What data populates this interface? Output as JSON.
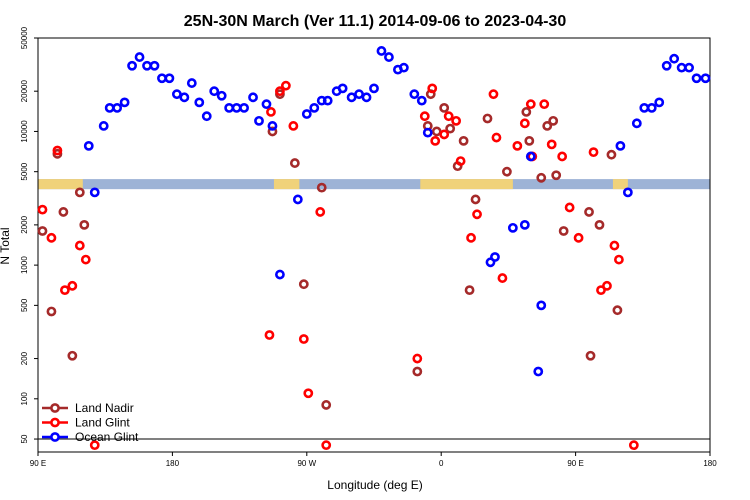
{
  "chart_data": {
    "type": "scatter",
    "title": "25N-30N March (Ver 11.1)   2014-09-06 to 2023-04-30",
    "xlabel": "Longitude (deg E)",
    "ylabel": "N Total",
    "x_ticks": [
      {
        "value": 0,
        "label": "90 E"
      },
      {
        "value": 90,
        "label": "180"
      },
      {
        "value": 180,
        "label": "90 W"
      },
      {
        "value": 270,
        "label": "0"
      },
      {
        "value": 360,
        "label": "90 E"
      },
      {
        "value": 450,
        "label": "180"
      }
    ],
    "y_ticks": [
      50,
      100,
      200,
      500,
      1000,
      2000,
      5000,
      10000,
      20000,
      50000
    ],
    "xlim": [
      0,
      450
    ],
    "ylim": [
      40,
      50000
    ],
    "y_scale": "log",
    "grid": false,
    "legend_position": "bottom-left",
    "reference_line": 50,
    "map_strip": {
      "y_range": [
        3700,
        4400
      ],
      "ocean_color": "#9db3d6",
      "land_color": "#f0d27a",
      "land_spans": [
        [
          0,
          30
        ],
        [
          158,
          175
        ],
        [
          256,
          318
        ],
        [
          385,
          395
        ]
      ]
    },
    "series": [
      {
        "name": "Land Nadir",
        "color": "#a52a2a",
        "points": [
          [
            3,
            1800
          ],
          [
            9,
            450
          ],
          [
            13,
            6800
          ],
          [
            17,
            2500
          ],
          [
            23,
            210
          ],
          [
            28,
            3500
          ],
          [
            31,
            2000
          ],
          [
            157,
            10000
          ],
          [
            162,
            19000
          ],
          [
            172,
            5800
          ],
          [
            178,
            720
          ],
          [
            190,
            3800
          ],
          [
            193,
            90
          ],
          [
            254,
            160
          ],
          [
            261,
            11000
          ],
          [
            263,
            19000
          ],
          [
            267,
            10000
          ],
          [
            272,
            15000
          ],
          [
            276,
            10500
          ],
          [
            281,
            5500
          ],
          [
            285,
            8500
          ],
          [
            289,
            650
          ],
          [
            293,
            3100
          ],
          [
            301,
            12500
          ],
          [
            314,
            5000
          ],
          [
            327,
            14000
          ],
          [
            329,
            8500
          ],
          [
            337,
            4500
          ],
          [
            341,
            11000
          ],
          [
            345,
            12000
          ],
          [
            347,
            4700
          ],
          [
            352,
            1800
          ],
          [
            369,
            2500
          ],
          [
            370,
            210
          ],
          [
            376,
            2000
          ],
          [
            384,
            6700
          ],
          [
            388,
            460
          ]
        ]
      },
      {
        "name": "Land Glint",
        "color": "#ff0000",
        "points": [
          [
            3,
            2600
          ],
          [
            9,
            1600
          ],
          [
            13,
            7200
          ],
          [
            18,
            650
          ],
          [
            23,
            700
          ],
          [
            28,
            1400
          ],
          [
            32,
            1100
          ],
          [
            38,
            45
          ],
          [
            155,
            300
          ],
          [
            156,
            14000
          ],
          [
            162,
            20000
          ],
          [
            166,
            22000
          ],
          [
            171,
            11000
          ],
          [
            178,
            280
          ],
          [
            181,
            110
          ],
          [
            189,
            2500
          ],
          [
            193,
            45
          ],
          [
            254,
            200
          ],
          [
            259,
            13000
          ],
          [
            264,
            21000
          ],
          [
            266,
            8500
          ],
          [
            272,
            9500
          ],
          [
            275,
            13000
          ],
          [
            280,
            12000
          ],
          [
            283,
            6000
          ],
          [
            290,
            1600
          ],
          [
            294,
            2400
          ],
          [
            305,
            19000
          ],
          [
            307,
            9000
          ],
          [
            311,
            800
          ],
          [
            321,
            7800
          ],
          [
            326,
            11500
          ],
          [
            330,
            16000
          ],
          [
            331,
            6500
          ],
          [
            339,
            16000
          ],
          [
            344,
            8000
          ],
          [
            351,
            6500
          ],
          [
            356,
            2700
          ],
          [
            362,
            1600
          ],
          [
            372,
            7000
          ],
          [
            377,
            650
          ],
          [
            381,
            700
          ],
          [
            386,
            1400
          ],
          [
            389,
            1100
          ],
          [
            399,
            45
          ]
        ]
      },
      {
        "name": "Ocean Glint",
        "color": "#0000ff",
        "points": [
          [
            34,
            7800
          ],
          [
            38,
            3500
          ],
          [
            44,
            11000
          ],
          [
            48,
            15000
          ],
          [
            53,
            15000
          ],
          [
            58,
            16500
          ],
          [
            63,
            31000
          ],
          [
            68,
            36000
          ],
          [
            73,
            31000
          ],
          [
            78,
            31000
          ],
          [
            83,
            25000
          ],
          [
            88,
            25000
          ],
          [
            93,
            19000
          ],
          [
            98,
            18000
          ],
          [
            103,
            23000
          ],
          [
            108,
            16500
          ],
          [
            113,
            13000
          ],
          [
            118,
            20000
          ],
          [
            123,
            18500
          ],
          [
            128,
            15000
          ],
          [
            133,
            15000
          ],
          [
            138,
            15000
          ],
          [
            144,
            18000
          ],
          [
            148,
            12000
          ],
          [
            153,
            16000
          ],
          [
            157,
            11000
          ],
          [
            162,
            850
          ],
          [
            174,
            3100
          ],
          [
            180,
            13500
          ],
          [
            185,
            15000
          ],
          [
            190,
            17000
          ],
          [
            194,
            17000
          ],
          [
            200,
            20000
          ],
          [
            204,
            21000
          ],
          [
            210,
            18000
          ],
          [
            215,
            19000
          ],
          [
            220,
            18000
          ],
          [
            225,
            21000
          ],
          [
            230,
            40000
          ],
          [
            235,
            36000
          ],
          [
            241,
            29000
          ],
          [
            245,
            30000
          ],
          [
            252,
            19000
          ],
          [
            257,
            17000
          ],
          [
            261,
            9800
          ],
          [
            303,
            1050
          ],
          [
            306,
            1150
          ],
          [
            318,
            1900
          ],
          [
            326,
            2000
          ],
          [
            330,
            6500
          ],
          [
            335,
            160
          ],
          [
            337,
            500
          ],
          [
            390,
            7800
          ],
          [
            395,
            3500
          ],
          [
            401,
            11500
          ],
          [
            406,
            15000
          ],
          [
            411,
            15000
          ],
          [
            416,
            16500
          ],
          [
            421,
            31000
          ],
          [
            426,
            35000
          ],
          [
            431,
            30000
          ],
          [
            436,
            30000
          ],
          [
            441,
            25000
          ],
          [
            447,
            25000
          ]
        ]
      }
    ]
  }
}
